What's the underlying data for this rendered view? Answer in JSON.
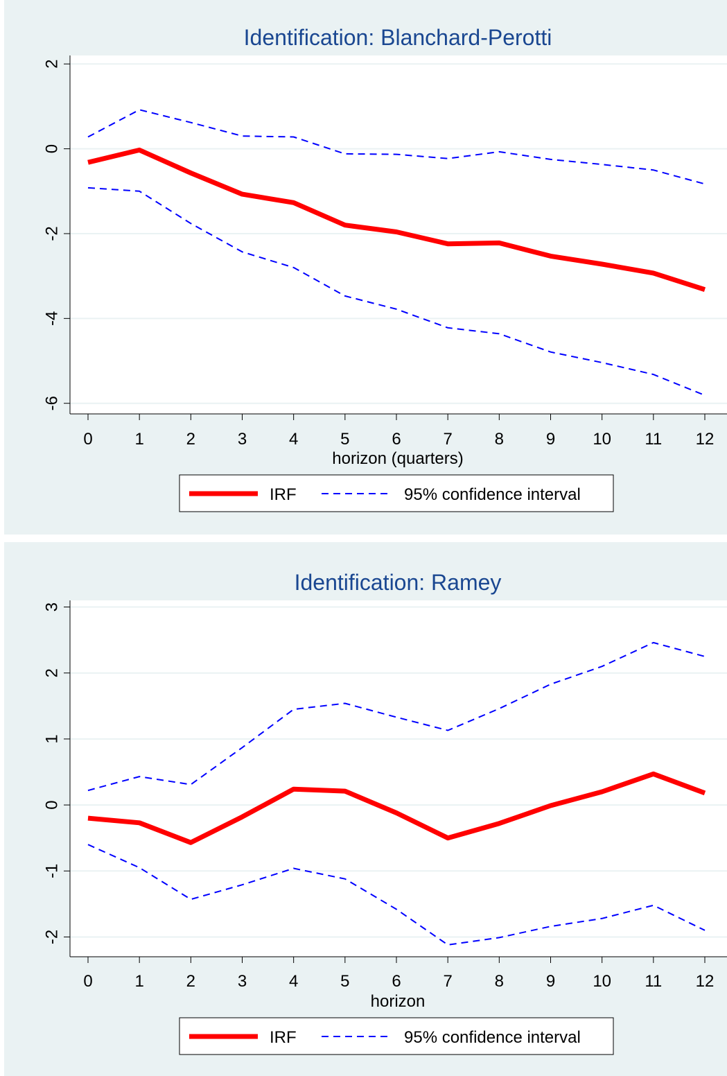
{
  "colors": {
    "panel_bg": "#eaf2f3",
    "plot_bg": "#ffffff",
    "grid": "#eaf2f3",
    "irf": "#ff0000",
    "ci": "#0000ff",
    "title": "#1a4791"
  },
  "chart_data": [
    {
      "type": "line",
      "title": "Identification: Blanchard-Perotti",
      "xlabel": "horizon (quarters)",
      "ylabel": "",
      "x": [
        0,
        1,
        2,
        3,
        4,
        5,
        6,
        7,
        8,
        9,
        10,
        11,
        12
      ],
      "xticks": [
        "0",
        "1",
        "2",
        "3",
        "4",
        "5",
        "6",
        "7",
        "8",
        "9",
        "10",
        "11",
        "12"
      ],
      "yticks": [
        2,
        0,
        -2,
        -4,
        -6
      ],
      "ytick_labels": [
        "2",
        "0",
        "-2",
        "-4",
        "-6"
      ],
      "xlim": [
        0,
        12
      ],
      "ylim": [
        -6.25,
        2.2
      ],
      "grid": true,
      "legend_position": "bottom",
      "series": [
        {
          "name": "IRF",
          "style": "solid",
          "values": [
            -0.32,
            -0.03,
            -0.57,
            -1.07,
            -1.27,
            -1.8,
            -1.96,
            -2.24,
            -2.22,
            -2.53,
            -2.72,
            -2.93,
            -3.32
          ]
        },
        {
          "name": "95% confidence interval",
          "style": "dashed",
          "values": [
            0.28,
            0.92,
            0.62,
            0.3,
            0.28,
            -0.12,
            -0.13,
            -0.23,
            -0.07,
            -0.25,
            -0.37,
            -0.5,
            -0.83
          ]
        },
        {
          "name": "",
          "style": "dashed",
          "values": [
            -0.92,
            -1.0,
            -1.76,
            -2.43,
            -2.8,
            -3.47,
            -3.78,
            -4.22,
            -4.36,
            -4.79,
            -5.04,
            -5.32,
            -5.81
          ]
        }
      ],
      "legend": [
        {
          "label": "IRF",
          "style": "solid"
        },
        {
          "label": "95% confidence interval",
          "style": "dashed"
        }
      ]
    },
    {
      "type": "line",
      "title": "Identification: Ramey",
      "xlabel": "horizon",
      "ylabel": "",
      "x": [
        0,
        1,
        2,
        3,
        4,
        5,
        6,
        7,
        8,
        9,
        10,
        11,
        12
      ],
      "xticks": [
        "0",
        "1",
        "2",
        "3",
        "4",
        "5",
        "6",
        "7",
        "8",
        "9",
        "10",
        "11",
        "12"
      ],
      "yticks": [
        3,
        2,
        1,
        0,
        -1,
        -2
      ],
      "ytick_labels": [
        "3",
        "2",
        "1",
        "0",
        "-1",
        "-2"
      ],
      "xlim": [
        0,
        12
      ],
      "ylim": [
        -2.3,
        3.1
      ],
      "grid": true,
      "legend_position": "bottom",
      "series": [
        {
          "name": "IRF",
          "style": "solid",
          "values": [
            -0.2,
            -0.27,
            -0.57,
            -0.18,
            0.24,
            0.21,
            -0.12,
            -0.5,
            -0.28,
            -0.01,
            0.2,
            0.47,
            0.18
          ]
        },
        {
          "name": "95% confidence interval",
          "style": "dashed",
          "values": [
            0.22,
            0.43,
            0.31,
            0.87,
            1.45,
            1.54,
            1.33,
            1.13,
            1.46,
            1.83,
            2.1,
            2.46,
            2.25
          ]
        },
        {
          "name": "",
          "style": "dashed",
          "values": [
            -0.6,
            -0.95,
            -1.43,
            -1.21,
            -0.96,
            -1.12,
            -1.58,
            -2.12,
            -2.01,
            -1.84,
            -1.72,
            -1.52,
            -1.9
          ]
        }
      ],
      "legend": [
        {
          "label": "IRF",
          "style": "solid"
        },
        {
          "label": "95% confidence interval",
          "style": "dashed"
        }
      ]
    }
  ]
}
